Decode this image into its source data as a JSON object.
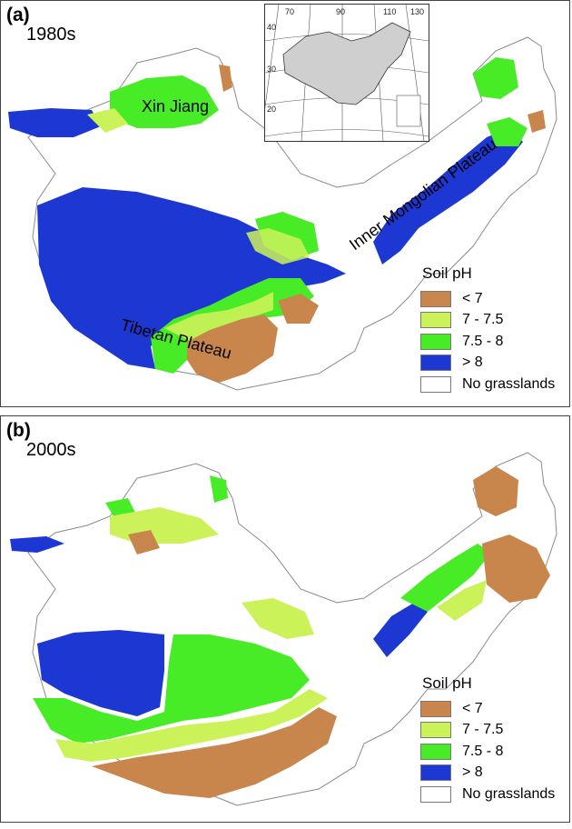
{
  "panels": [
    {
      "letter": "(a)",
      "period": "1980s",
      "regions": {
        "xinjiang": "Xin Jiang",
        "tibet": "Tibetan Plateau",
        "mongolia": "Inner Mongolian Plateau"
      },
      "inset_ticks": [
        "70",
        "90",
        "110",
        "130",
        "40",
        "30",
        "20"
      ]
    },
    {
      "letter": "(b)",
      "period": "2000s"
    }
  ],
  "legend": {
    "title": "Soil pH",
    "items": [
      {
        "label": "< 7",
        "color": "#c8864c"
      },
      {
        "label": "7 - 7.5",
        "color": "#ccf25a"
      },
      {
        "label": "7.5 - 8",
        "color": "#48ec26"
      },
      {
        "label": "> 8",
        "color": "#1c37d2"
      },
      {
        "label": "No grasslands",
        "color": "#ffffff"
      }
    ]
  },
  "colors": {
    "outline": "#7a7a7a",
    "inset_land": "#cfcfcf"
  }
}
